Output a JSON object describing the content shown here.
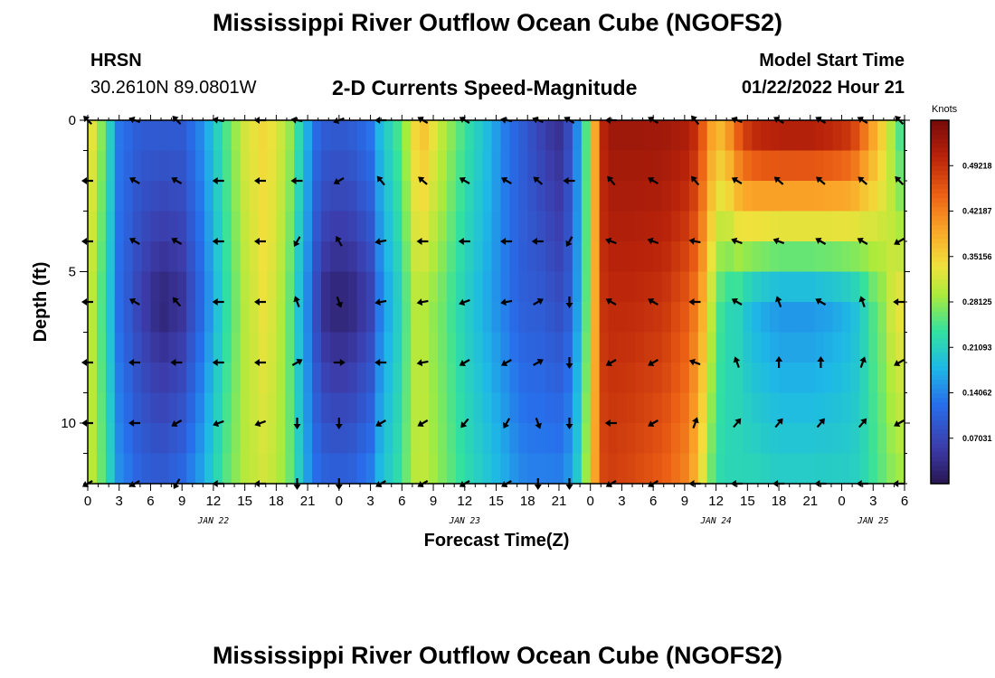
{
  "header": {
    "title": "Mississippi River Outflow Ocean Cube (NGOFS2)",
    "station_name": "HRSN",
    "station_coords": "30.2610N  89.0801W",
    "subtitle": "2-D Currents Speed-Magnitude",
    "start_label": "Model Start Time",
    "start_value": "01/22/2022 Hour 21"
  },
  "footer": {
    "title": "Mississippi River Outflow Ocean Cube (NGOFS2)"
  },
  "chart_data": {
    "type": "heatmap",
    "title": "2-D Currents Speed-Magnitude",
    "xlabel": "Forecast Time(Z)",
    "ylabel": "Depth (ft)",
    "x_hours_range": [
      0,
      54
    ],
    "y_range": [
      0,
      12
    ],
    "x_ticks": [
      {
        "h": 0,
        "label": "0"
      },
      {
        "h": 3,
        "label": "3"
      },
      {
        "h": 6,
        "label": "6"
      },
      {
        "h": 9,
        "label": "9"
      },
      {
        "h": 12,
        "label": "12"
      },
      {
        "h": 15,
        "label": "15"
      },
      {
        "h": 18,
        "label": "18"
      },
      {
        "h": 21,
        "label": "21"
      },
      {
        "h": 24,
        "label": "0"
      },
      {
        "h": 27,
        "label": "3"
      },
      {
        "h": 30,
        "label": "6"
      },
      {
        "h": 33,
        "label": "9"
      },
      {
        "h": 36,
        "label": "12"
      },
      {
        "h": 39,
        "label": "15"
      },
      {
        "h": 42,
        "label": "18"
      },
      {
        "h": 45,
        "label": "21"
      },
      {
        "h": 48,
        "label": "0"
      },
      {
        "h": 51,
        "label": "3"
      },
      {
        "h": 54,
        "label": "6"
      },
      {
        "h": 57,
        "label": "9"
      },
      {
        "h": 60,
        "label": "12"
      },
      {
        "h": 63,
        "label": "15"
      },
      {
        "h": 66,
        "label": "18"
      },
      {
        "h": 69,
        "label": "21"
      },
      {
        "h": 72,
        "label": "0"
      },
      {
        "h": 75,
        "label": "3"
      },
      {
        "h": 78,
        "label": "6"
      }
    ],
    "x_max_hours": 78,
    "date_labels": [
      {
        "h": 12,
        "label": "JAN 22"
      },
      {
        "h": 36,
        "label": "JAN 23"
      },
      {
        "h": 60,
        "label": "JAN 24"
      },
      {
        "h": 75,
        "label": "JAN 25"
      }
    ],
    "y_ticks": [
      {
        "v": 0,
        "label": "0"
      },
      {
        "v": 5,
        "label": "5"
      },
      {
        "v": 10,
        "label": "10"
      }
    ],
    "y_max": 12,
    "colorbar": {
      "unit": "Knots",
      "min": 0,
      "max": 0.5625,
      "labels": [
        {
          "v": 0.49218,
          "label": "0.49218"
        },
        {
          "v": 0.42187,
          "label": "0.42187"
        },
        {
          "v": 0.35156,
          "label": "0.35156"
        },
        {
          "v": 0.28125,
          "label": "0.28125"
        },
        {
          "v": 0.21093,
          "label": "0.21093"
        },
        {
          "v": 0.14062,
          "label": "0.14062"
        },
        {
          "v": 0.07031,
          "label": "0.07031"
        }
      ]
    },
    "speed_profile": {
      "hours": [
        0,
        0.5,
        1,
        2,
        3,
        5,
        7,
        9,
        11,
        13,
        15,
        17,
        19,
        20,
        21,
        22,
        23,
        25,
        27,
        28,
        30,
        31,
        32,
        34,
        36,
        38,
        40,
        41,
        42,
        43,
        44,
        45,
        46,
        47,
        48,
        49,
        50,
        52,
        55,
        57,
        58,
        59,
        60,
        61,
        62,
        63,
        64,
        66,
        69,
        71,
        73,
        74,
        75,
        76,
        77,
        78
      ],
      "surface": [
        0.33,
        0.33,
        0.3,
        0.22,
        0.13,
        0.1,
        0.1,
        0.1,
        0.15,
        0.24,
        0.32,
        0.35,
        0.3,
        0.24,
        0.17,
        0.11,
        0.1,
        0.1,
        0.13,
        0.19,
        0.26,
        0.34,
        0.37,
        0.3,
        0.24,
        0.19,
        0.13,
        0.11,
        0.09,
        0.07,
        0.05,
        0.04,
        0.08,
        0.17,
        0.31,
        0.5,
        0.53,
        0.53,
        0.53,
        0.52,
        0.5,
        0.44,
        0.37,
        0.4,
        0.46,
        0.5,
        0.52,
        0.53,
        0.53,
        0.52,
        0.5,
        0.45,
        0.4,
        0.35,
        0.28,
        0.22
      ],
      "deep": [
        0.3,
        0.3,
        0.27,
        0.2,
        0.12,
        0.06,
        0.02,
        0.04,
        0.12,
        0.22,
        0.3,
        0.34,
        0.28,
        0.2,
        0.14,
        0.06,
        0.02,
        0.02,
        0.06,
        0.14,
        0.22,
        0.3,
        0.3,
        0.26,
        0.21,
        0.17,
        0.13,
        0.11,
        0.1,
        0.1,
        0.09,
        0.08,
        0.1,
        0.18,
        0.31,
        0.49,
        0.5,
        0.5,
        0.49,
        0.46,
        0.43,
        0.37,
        0.26,
        0.22,
        0.22,
        0.19,
        0.17,
        0.15,
        0.15,
        0.16,
        0.18,
        0.21,
        0.25,
        0.28,
        0.33,
        0.34
      ],
      "bottom": [
        0.3,
        0.3,
        0.28,
        0.22,
        0.15,
        0.11,
        0.1,
        0.12,
        0.17,
        0.25,
        0.3,
        0.32,
        0.28,
        0.22,
        0.16,
        0.12,
        0.11,
        0.11,
        0.14,
        0.19,
        0.24,
        0.3,
        0.31,
        0.27,
        0.23,
        0.2,
        0.17,
        0.15,
        0.14,
        0.14,
        0.14,
        0.14,
        0.16,
        0.22,
        0.34,
        0.47,
        0.48,
        0.47,
        0.45,
        0.42,
        0.38,
        0.3,
        0.23,
        0.22,
        0.22,
        0.22,
        0.22,
        0.21,
        0.21,
        0.21,
        0.21,
        0.22,
        0.24,
        0.26,
        0.28,
        0.29
      ]
    },
    "vector_depths": [
      0,
      2,
      4,
      6,
      8,
      10,
      12
    ],
    "vector_hours": [
      0,
      4.5,
      8.5,
      12.5,
      16.5,
      20,
      24,
      28,
      32,
      36,
      40,
      43,
      46,
      50,
      54,
      58,
      62,
      66,
      70,
      74,
      77.5
    ],
    "vector_directions_deg": [
      [
        225,
        250,
        225,
        260,
        270,
        260,
        290,
        270,
        240,
        240,
        260,
        250,
        240,
        270,
        240,
        220,
        250,
        240,
        240,
        240,
        225
      ],
      [
        270,
        240,
        240,
        270,
        270,
        270,
        300,
        220,
        230,
        240,
        240,
        230,
        270,
        220,
        240,
        220,
        240,
        230,
        230,
        230,
        225
      ],
      [
        270,
        240,
        240,
        270,
        270,
        330,
        210,
        280,
        270,
        270,
        270,
        270,
        330,
        250,
        250,
        260,
        250,
        250,
        240,
        240,
        300
      ],
      [
        270,
        240,
        220,
        270,
        270,
        200,
        20,
        280,
        280,
        290,
        280,
        120,
        0,
        240,
        240,
        270,
        240,
        200,
        240,
        200,
        270
      ],
      [
        270,
        270,
        270,
        270,
        270,
        120,
        90,
        270,
        280,
        300,
        300,
        120,
        0,
        300,
        300,
        250,
        200,
        180,
        180,
        160,
        300
      ],
      [
        270,
        270,
        300,
        290,
        290,
        0,
        0,
        300,
        300,
        320,
        330,
        20,
        0,
        270,
        300,
        160,
        140,
        140,
        140,
        140,
        300
      ],
      [
        300,
        300,
        330,
        270,
        270,
        0,
        0,
        300,
        300,
        300,
        300,
        0,
        0,
        300,
        300,
        270,
        270,
        270,
        270,
        270,
        270
      ]
    ]
  }
}
